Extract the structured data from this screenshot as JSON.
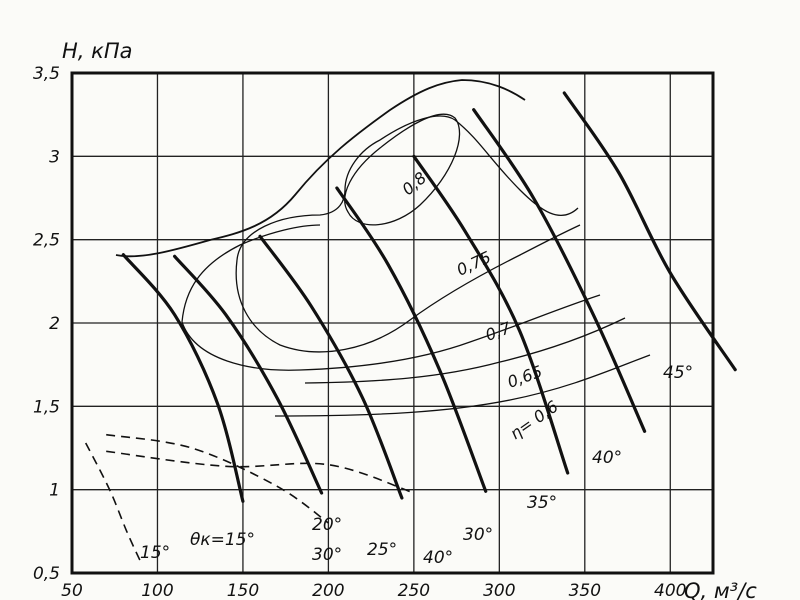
{
  "chart_data": {
    "type": "line",
    "title": "",
    "xlabel": "Q, м³/с",
    "ylabel": "H, кПа",
    "xlim": [
      50,
      425
    ],
    "ylim": [
      0.5,
      3.5
    ],
    "x_ticks": [
      50,
      100,
      150,
      200,
      250,
      300,
      350,
      400
    ],
    "y_ticks": [
      0.5,
      1,
      1.5,
      2,
      2.5,
      3,
      3.5
    ],
    "x_tick_labels": [
      "50",
      "100",
      "150",
      "200",
      "250",
      "300",
      "350",
      "400"
    ],
    "y_tick_labels": [
      "0,5",
      "1",
      "1,5",
      "2",
      "2,5",
      "3",
      "3,5"
    ],
    "grid": true,
    "blade_angle_series": [
      {
        "name": "θк=15°",
        "x": [
          80,
          110,
          135,
          150
        ],
        "y": [
          2.41,
          2.05,
          1.52,
          0.93
        ]
      },
      {
        "name": "20°",
        "x": [
          110,
          140,
          170,
          196
        ],
        "y": [
          2.4,
          2.05,
          1.55,
          0.98
        ]
      },
      {
        "name": "25°",
        "x": [
          160,
          190,
          220,
          243
        ],
        "y": [
          2.52,
          2.1,
          1.55,
          0.95
        ]
      },
      {
        "name": "30°",
        "x": [
          205,
          235,
          265,
          292
        ],
        "y": [
          2.81,
          2.35,
          1.72,
          0.99
        ]
      },
      {
        "name": "35°",
        "x": [
          250,
          280,
          312,
          340
        ],
        "y": [
          3.0,
          2.55,
          1.95,
          1.1
        ]
      },
      {
        "name": "40°",
        "x": [
          285,
          320,
          355,
          385
        ],
        "y": [
          3.28,
          2.75,
          2.05,
          1.35
        ]
      },
      {
        "name": "45°",
        "x": [
          338,
          370,
          400,
          438
        ],
        "y": [
          3.38,
          2.9,
          2.3,
          1.72
        ]
      }
    ],
    "dashed_series": [
      {
        "name": "15°",
        "x": [
          58,
          72,
          82,
          90
        ],
        "y": [
          1.28,
          1.0,
          0.75,
          0.57
        ]
      },
      {
        "name": "30°",
        "x": [
          70,
          120,
          170,
          200
        ],
        "y": [
          1.33,
          1.25,
          1.02,
          0.8
        ]
      },
      {
        "name": "40°",
        "x": [
          70,
          140,
          200,
          250
        ],
        "y": [
          1.23,
          1.14,
          1.15,
          0.98
        ]
      }
    ],
    "efficiency_label": "η= 0,6",
    "efficiency_contours": [
      "0,8",
      "0,75",
      "0,7",
      "0,65",
      "0,6"
    ]
  }
}
